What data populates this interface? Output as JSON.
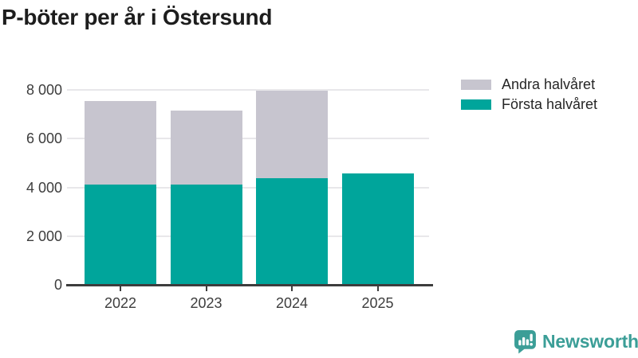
{
  "header": {
    "title": "P-böter per år i Östersund"
  },
  "footer": {
    "brand": "Newsworthy"
  },
  "colors": {
    "first_half": "#00a59b",
    "second_half": "#c7c5cf",
    "axis": "#3d3d3d",
    "grid": "#e8e7ea",
    "title_text": "#1d1d1d",
    "brand": "#3b9e97"
  },
  "chart_data": {
    "type": "bar",
    "stacked": true,
    "title": "P-böter per år i Östersund",
    "categories": [
      "2022",
      "2023",
      "2024",
      "2025"
    ],
    "series": [
      {
        "name": "Första halvåret",
        "color": "#00a59b",
        "values": [
          4100,
          4100,
          4380,
          4580
        ]
      },
      {
        "name": "Andra halvåret",
        "color": "#c7c5cf",
        "values": [
          3450,
          3050,
          3600,
          0
        ]
      }
    ],
    "totals": [
      7550,
      7150,
      7980,
      4580
    ],
    "xlabel": "",
    "ylabel": "",
    "ylim": [
      0,
      8000
    ],
    "grid": true,
    "yticks": [
      {
        "value": 0,
        "label": "0"
      },
      {
        "value": 2000,
        "label": "2 000"
      },
      {
        "value": 4000,
        "label": "4 000"
      },
      {
        "value": 6000,
        "label": "6 000"
      },
      {
        "value": 8000,
        "label": "8 000"
      }
    ],
    "legend_position": "top-right",
    "legend": [
      {
        "label": "Andra halvåret",
        "color": "#c7c5cf"
      },
      {
        "label": "Första halvåret",
        "color": "#00a59b"
      }
    ]
  }
}
